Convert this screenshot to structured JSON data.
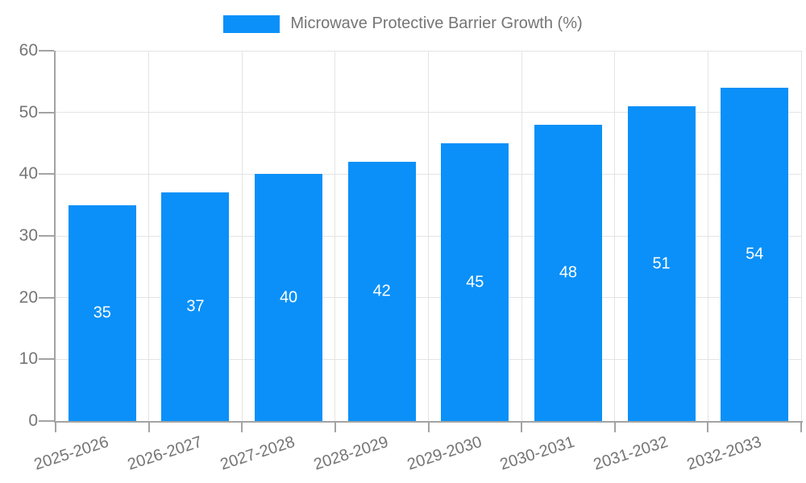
{
  "chart_data": {
    "type": "bar",
    "title": "Microwave Protective Barrier Growth (%)",
    "categories": [
      "2025-2026",
      "2026-2027",
      "2027-2028",
      "2028-2029",
      "2029-2030",
      "2030-2031",
      "2031-2032",
      "2032-2033"
    ],
    "values": [
      35,
      37,
      40,
      42,
      45,
      48,
      51,
      54
    ],
    "xlabel": "",
    "ylabel": "",
    "ylim": [
      0,
      60
    ],
    "yticks": [
      0,
      10,
      20,
      30,
      40,
      50,
      60
    ],
    "grid": "on",
    "legend_position": "top",
    "value_labels": "inside-center-white",
    "x_label_rotation_deg": -18,
    "colors": {
      "bar": "#0a90f8",
      "value_label": "#ffffff",
      "grid": "#e4e4e4",
      "axis": "#a3a3a3",
      "tick_label": "#757575",
      "legend_text": "#757575",
      "background": "#ffffff"
    }
  }
}
